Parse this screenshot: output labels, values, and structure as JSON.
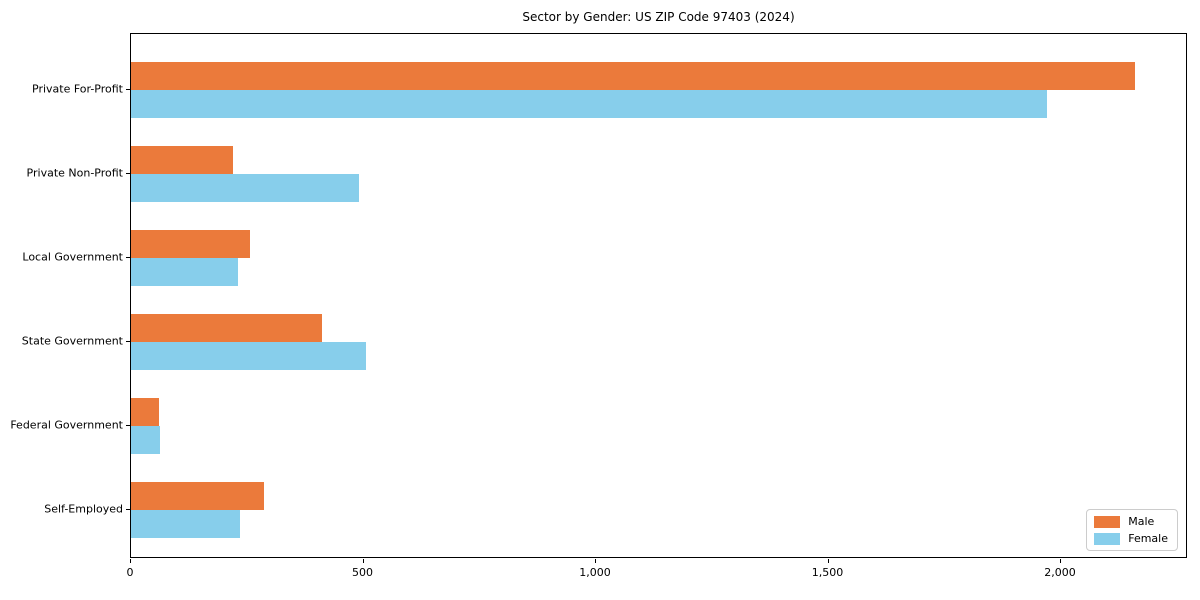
{
  "chart_data": {
    "type": "bar",
    "orientation": "horizontal",
    "title": "Sector by Gender: US ZIP Code 97403 (2024)",
    "xlabel": "",
    "ylabel": "",
    "grid": false,
    "background": "#ffffff",
    "categories": [
      "Private For-Profit",
      "Private Non-Profit",
      "Local Government",
      "State Government",
      "Federal Government",
      "Self-Employed"
    ],
    "series": [
      {
        "name": "Male",
        "color": "#eb7a3b",
        "values": [
          2160,
          220,
          255,
          410,
          60,
          285
        ]
      },
      {
        "name": "Female",
        "color": "#87ceeb",
        "values": [
          1970,
          490,
          230,
          505,
          63,
          235
        ]
      }
    ],
    "xlim": [
      0,
      2273
    ],
    "xticks": [
      {
        "value": 0,
        "label": "0"
      },
      {
        "value": 500,
        "label": "500"
      },
      {
        "value": 1000,
        "label": "1,000"
      },
      {
        "value": 1500,
        "label": "1,500"
      },
      {
        "value": 2000,
        "label": "2,000"
      }
    ],
    "legend": {
      "position": "lower right",
      "entries": [
        "Male",
        "Female"
      ]
    }
  }
}
